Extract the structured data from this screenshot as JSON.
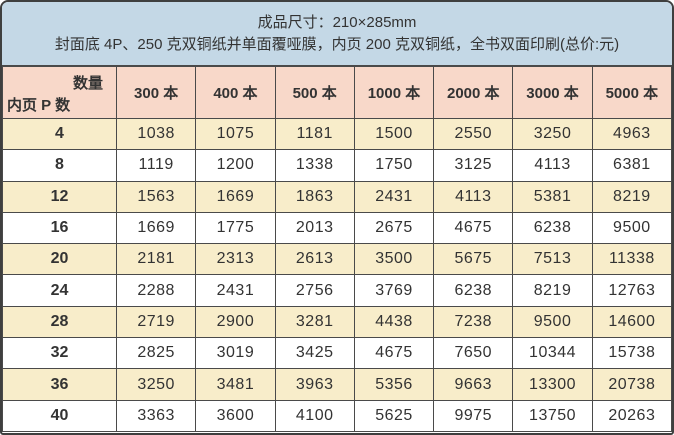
{
  "banner": {
    "line1": "成品尺寸：210×285mm",
    "line2": "封面底 4P、250 克双铜纸并单面覆哑膜，内页 200 克双铜纸，全书双面印刷(总价:元)"
  },
  "table": {
    "corner": {
      "quantity_label": "数量",
      "pages_label": "内页 P 数"
    },
    "columns": [
      "300 本",
      "400 本",
      "500 本",
      "1000 本",
      "2000 本",
      "3000 本",
      "5000 本"
    ],
    "rows": [
      {
        "pages": "4",
        "prices": [
          "1038",
          "1075",
          "1181",
          "1500",
          "2550",
          "3250",
          "4963"
        ]
      },
      {
        "pages": "8",
        "prices": [
          "1119",
          "1200",
          "1338",
          "1750",
          "3125",
          "4113",
          "6381"
        ]
      },
      {
        "pages": "12",
        "prices": [
          "1563",
          "1669",
          "1863",
          "2431",
          "4113",
          "5381",
          "8219"
        ]
      },
      {
        "pages": "16",
        "prices": [
          "1669",
          "1775",
          "2013",
          "2675",
          "4675",
          "6238",
          "9500"
        ]
      },
      {
        "pages": "20",
        "prices": [
          "2181",
          "2313",
          "2613",
          "3500",
          "5675",
          "7513",
          "11338"
        ]
      },
      {
        "pages": "24",
        "prices": [
          "2288",
          "2431",
          "2756",
          "3769",
          "6238",
          "8219",
          "12763"
        ]
      },
      {
        "pages": "28",
        "prices": [
          "2719",
          "2900",
          "3281",
          "4438",
          "7238",
          "9500",
          "14600"
        ]
      },
      {
        "pages": "32",
        "prices": [
          "2825",
          "3019",
          "3425",
          "4675",
          "7650",
          "10344",
          "15738"
        ]
      },
      {
        "pages": "36",
        "prices": [
          "3250",
          "3481",
          "3963",
          "5356",
          "9663",
          "13300",
          "20738"
        ]
      },
      {
        "pages": "40",
        "prices": [
          "3363",
          "3600",
          "4100",
          "5625",
          "9975",
          "13750",
          "20263"
        ]
      }
    ]
  },
  "colors": {
    "banner-bg": "#c4d8e6",
    "header-bg": "#f8d8c9",
    "row-cream": "#f8edca",
    "row-white": "#ffffff",
    "grid-line": "#4a4a4a",
    "outer-line": "#3f3f3f",
    "text": "#333333"
  }
}
